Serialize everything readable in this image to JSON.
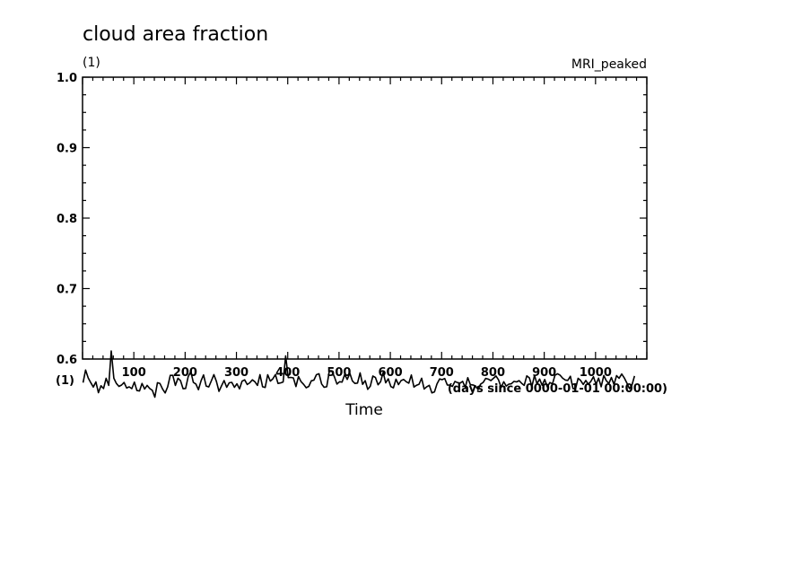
{
  "chart_data": {
    "type": "line",
    "title": "cloud area fraction",
    "y_units": "(1)",
    "y_units_lower": "(1)",
    "dataset_label": "MRI_peaked",
    "xlabel": "Time",
    "x_units": "(days since 0000-01-01 00:00:00)",
    "xlim": [
      0,
      1100
    ],
    "ylim": [
      0.6,
      1.0
    ],
    "x_ticks": [
      100,
      200,
      300,
      400,
      500,
      600,
      700,
      800,
      900,
      1000
    ],
    "y_ticks": [
      0.6,
      0.7,
      0.8,
      0.9,
      1.0
    ],
    "y_tick_labels": [
      "0.6",
      "0.7",
      "0.8",
      "0.9",
      "1.0"
    ],
    "grid": false,
    "series": [
      {
        "x_start": 1,
        "x_step": 5,
        "values": [
          0.5665,
          0.5843,
          0.5733,
          0.5666,
          0.5602,
          0.5675,
          0.5522,
          0.562,
          0.5581,
          0.5726,
          0.5626,
          0.6113,
          0.5728,
          0.5653,
          0.5612,
          0.5631,
          0.5668,
          0.5588,
          0.5605,
          0.558,
          0.5673,
          0.5553,
          0.5546,
          0.5653,
          0.5575,
          0.5625,
          0.5581,
          0.5556,
          0.5459,
          0.5664,
          0.5652,
          0.5575,
          0.5518,
          0.5606,
          0.5768,
          0.5768,
          0.5626,
          0.5727,
          0.5693,
          0.5578,
          0.5582,
          0.5751,
          0.5821,
          0.5669,
          0.5645,
          0.5564,
          0.5691,
          0.5774,
          0.5617,
          0.5604,
          0.5688,
          0.5778,
          0.5684,
          0.5541,
          0.5622,
          0.5694,
          0.5599,
          0.5663,
          0.5669,
          0.5599,
          0.5648,
          0.5577,
          0.5685,
          0.5704,
          0.5638,
          0.5663,
          0.5705,
          0.5678,
          0.5625,
          0.5778,
          0.5606,
          0.5596,
          0.5777,
          0.5687,
          0.5718,
          0.5778,
          0.5653,
          0.5661,
          0.5674,
          0.6043,
          0.5736,
          0.5739,
          0.5732,
          0.5609,
          0.5751,
          0.5679,
          0.5639,
          0.5592,
          0.5612,
          0.5691,
          0.5701,
          0.5777,
          0.5791,
          0.5646,
          0.5599,
          0.5606,
          0.5822,
          0.5829,
          0.5745,
          0.5644,
          0.5678,
          0.5673,
          0.5779,
          0.5711,
          0.5799,
          0.5689,
          0.5653,
          0.5659,
          0.5804,
          0.5641,
          0.5693,
          0.5569,
          0.5615,
          0.5758,
          0.5738,
          0.5634,
          0.5676,
          0.5811,
          0.5663,
          0.5719,
          0.5609,
          0.5591,
          0.5714,
          0.5637,
          0.5694,
          0.5709,
          0.5678,
          0.5657,
          0.5773,
          0.5602,
          0.5628,
          0.5642,
          0.5727,
          0.5575,
          0.5607,
          0.5627,
          0.5519,
          0.5534,
          0.5646,
          0.5717,
          0.5707,
          0.5724,
          0.5632,
          0.5629,
          0.5612,
          0.5681,
          0.5665,
          0.5659,
          0.5683,
          0.5597,
          0.5735,
          0.5636,
          0.5632,
          0.5618,
          0.5565,
          0.5643,
          0.5667,
          0.5725,
          0.5715,
          0.5694,
          0.5726,
          0.5759,
          0.5705,
          0.5598,
          0.5678,
          0.5616,
          0.5643,
          0.5648,
          0.5683,
          0.5675,
          0.5693,
          0.5655,
          0.5626,
          0.5761,
          0.5732,
          0.5609,
          0.5768,
          0.5648,
          0.5716,
          0.5628,
          0.5709,
          0.5604,
          0.5666,
          0.5646,
          0.5769,
          0.5791,
          0.5769,
          0.5728,
          0.5702,
          0.5697,
          0.5755,
          0.5581,
          0.5576,
          0.5726,
          0.5696,
          0.5639,
          0.5695,
          0.5641,
          0.5684,
          0.5749,
          0.5642,
          0.5729,
          0.5607,
          0.5765,
          0.5693,
          0.5652,
          0.5738,
          0.5639,
          0.5764,
          0.5728,
          0.5787,
          0.5734,
          0.5661,
          0.5581,
          0.5629,
          0.5759
        ]
      }
    ]
  }
}
